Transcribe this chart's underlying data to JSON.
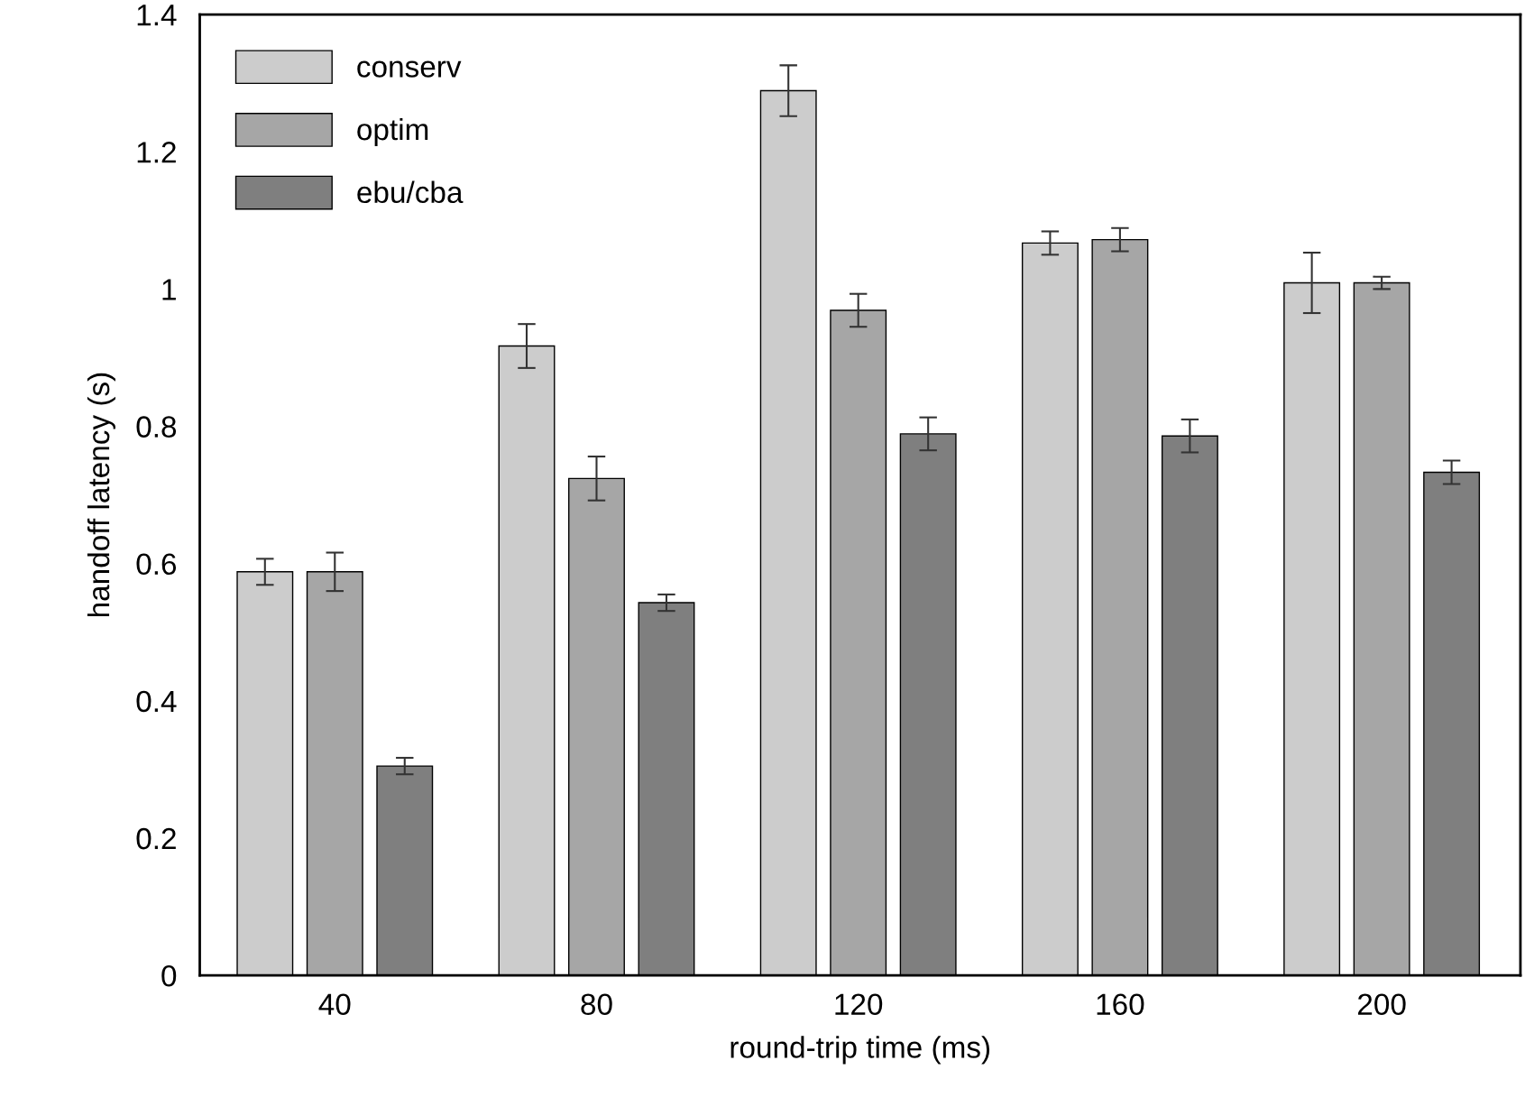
{
  "chart_data": {
    "type": "bar",
    "xlabel": "round-trip time (ms)",
    "ylabel": "handoff latency (s)",
    "categories": [
      "40",
      "80",
      "120",
      "160",
      "200"
    ],
    "series": [
      {
        "name": "conserv",
        "color": "#cccccc",
        "values": [
          0.588,
          0.917,
          1.289,
          1.067,
          1.009
        ],
        "errors": [
          0.019,
          0.032,
          0.037,
          0.017,
          0.044
        ]
      },
      {
        "name": "optim",
        "color": "#a6a6a6",
        "values": [
          0.588,
          0.724,
          0.969,
          1.072,
          1.009
        ],
        "errors": [
          0.028,
          0.032,
          0.024,
          0.017,
          0.009
        ]
      },
      {
        "name": "ebu/cba",
        "color": "#7f7f7f",
        "values": [
          0.305,
          0.543,
          0.789,
          0.786,
          0.733
        ],
        "errors": [
          0.012,
          0.012,
          0.024,
          0.024,
          0.017
        ]
      }
    ],
    "ylim": [
      0,
      1.4
    ],
    "yticks": [
      0,
      0.2,
      0.4,
      0.6,
      0.8,
      1,
      1.2,
      1.4
    ],
    "grid": false,
    "legend": "top left"
  }
}
